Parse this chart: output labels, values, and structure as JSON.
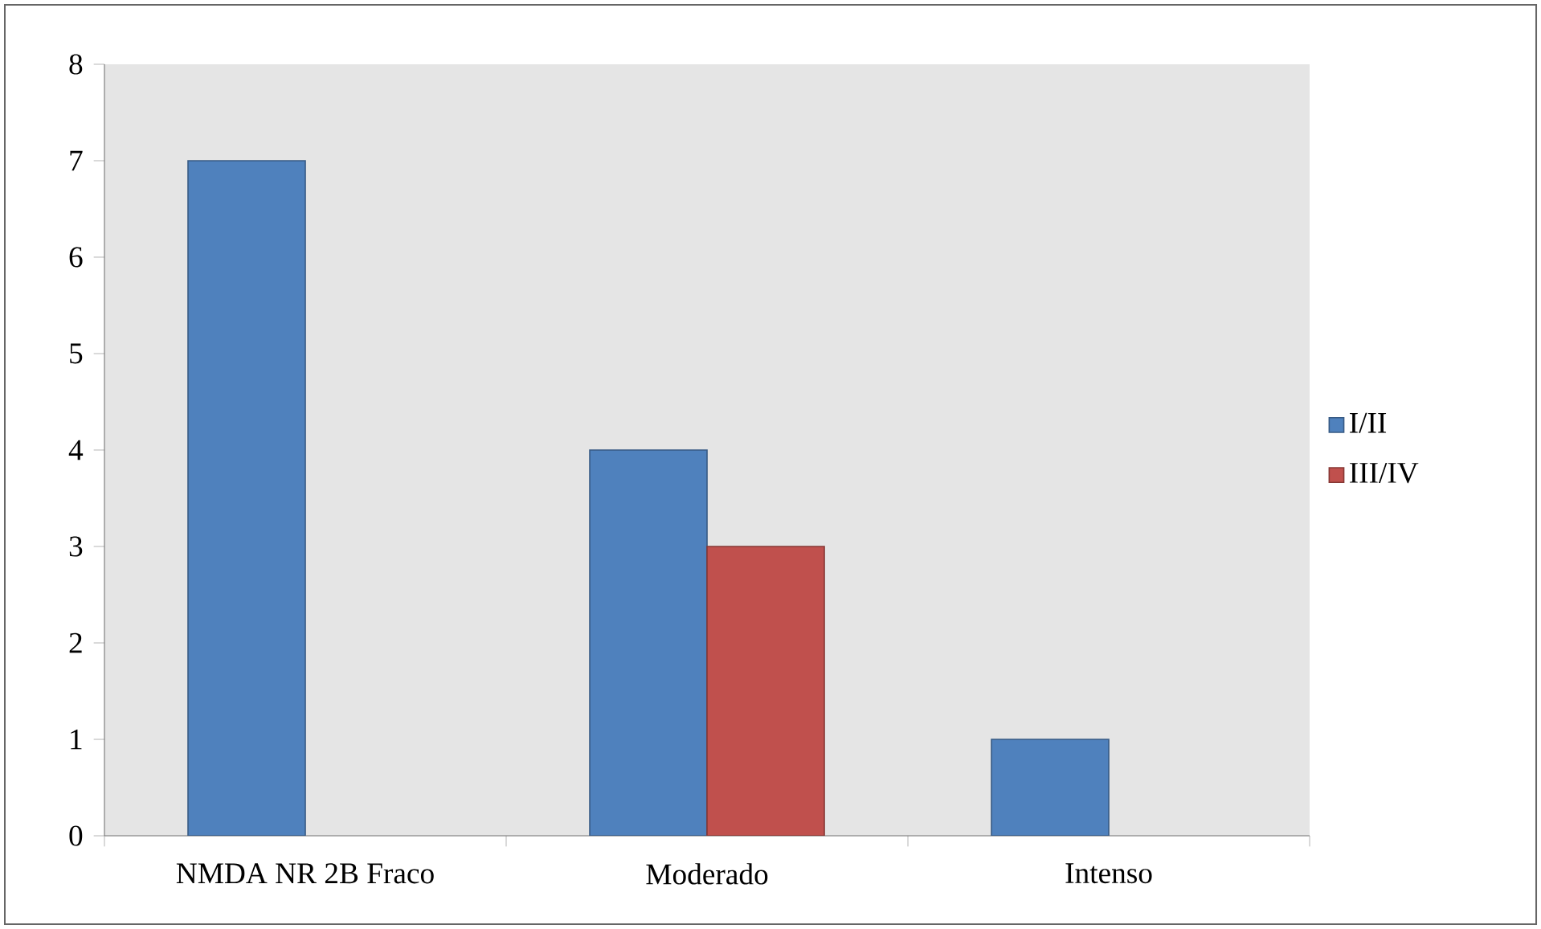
{
  "chart_data": {
    "type": "bar",
    "categories": [
      "NMDA NR 2B Fraco",
      "Moderado",
      "Intenso"
    ],
    "series": [
      {
        "name": "I/II",
        "color": "#4f81bd",
        "values": [
          7,
          4,
          1
        ]
      },
      {
        "name": "III/IV",
        "color": "#c0504d",
        "values": [
          null,
          3,
          null
        ]
      }
    ],
    "ylim": [
      0,
      8
    ],
    "yticks": [
      0,
      1,
      2,
      3,
      4,
      5,
      6,
      7,
      8
    ],
    "grid": false,
    "legend": "right"
  }
}
